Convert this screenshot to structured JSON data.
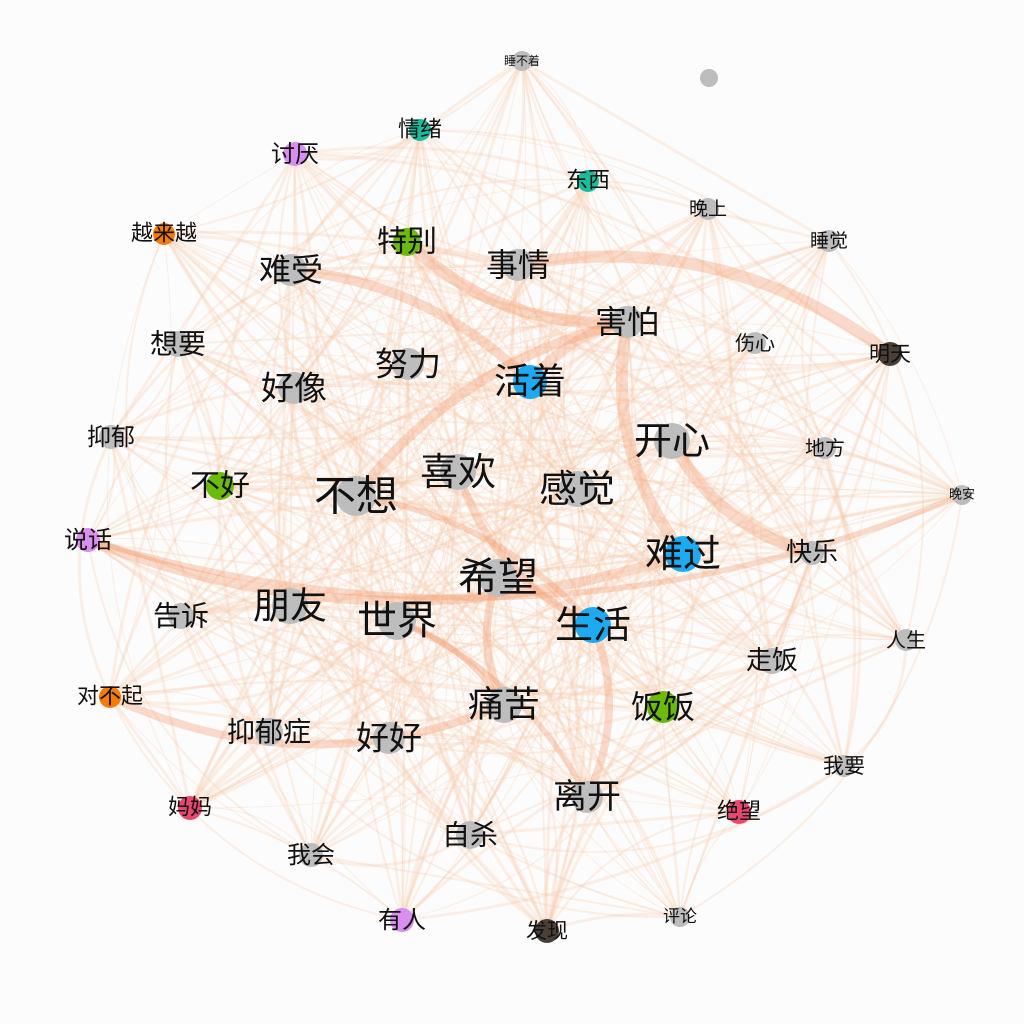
{
  "colors": {
    "background": "#fcfcfc",
    "edge_light": "#f7c9a8",
    "edge_strong": "#f39a6c",
    "gray": "#bdbdbd",
    "teal": "#1abc9c",
    "green": "#6cbb0a",
    "orange": "#f57c00",
    "purple": "#d98ef0",
    "blue": "#1eaaf1",
    "dark": "#4a3f36",
    "pink": "#e8486f"
  },
  "graph": {
    "nodes": [
      {
        "id": "shuibuzhao",
        "label": "睡不着",
        "group": "gray"
      },
      {
        "id": "isolated",
        "label": "",
        "group": "gray"
      },
      {
        "id": "qingxu",
        "label": "情绪",
        "group": "teal"
      },
      {
        "id": "taoyan",
        "label": "讨厌",
        "group": "purple"
      },
      {
        "id": "dongxi",
        "label": "东西",
        "group": "teal"
      },
      {
        "id": "wanshang",
        "label": "晚上",
        "group": "gray"
      },
      {
        "id": "yuelaiyue",
        "label": "越来越",
        "group": "orange"
      },
      {
        "id": "tebie",
        "label": "特别",
        "group": "green"
      },
      {
        "id": "shuijiao",
        "label": "睡觉",
        "group": "gray"
      },
      {
        "id": "shiqing",
        "label": "事情",
        "group": "gray"
      },
      {
        "id": "nanshou",
        "label": "难受",
        "group": "gray"
      },
      {
        "id": "haipa",
        "label": "害怕",
        "group": "gray"
      },
      {
        "id": "xiangyao",
        "label": "想要",
        "group": "gray"
      },
      {
        "id": "shangxin",
        "label": "伤心",
        "group": "gray"
      },
      {
        "id": "mingtian",
        "label": "明天",
        "group": "dark"
      },
      {
        "id": "nuli",
        "label": "努力",
        "group": "gray"
      },
      {
        "id": "huozhe",
        "label": "活着",
        "group": "blue"
      },
      {
        "id": "haoxiang",
        "label": "好像",
        "group": "gray"
      },
      {
        "id": "yiyu",
        "label": "抑郁",
        "group": "gray"
      },
      {
        "id": "kaixin",
        "label": "开心",
        "group": "gray"
      },
      {
        "id": "difang",
        "label": "地方",
        "group": "gray"
      },
      {
        "id": "buhao",
        "label": "不好",
        "group": "green"
      },
      {
        "id": "xihuan",
        "label": "喜欢",
        "group": "gray"
      },
      {
        "id": "buxiang",
        "label": "不想",
        "group": "gray"
      },
      {
        "id": "ganjue",
        "label": "感觉",
        "group": "gray"
      },
      {
        "id": "wanan",
        "label": "晚安",
        "group": "gray"
      },
      {
        "id": "shuohua",
        "label": "说话",
        "group": "purple"
      },
      {
        "id": "nanguo",
        "label": "难过",
        "group": "blue"
      },
      {
        "id": "kuaile",
        "label": "快乐",
        "group": "gray"
      },
      {
        "id": "xiwang",
        "label": "希望",
        "group": "gray"
      },
      {
        "id": "pengyou",
        "label": "朋友",
        "group": "gray"
      },
      {
        "id": "gaosu",
        "label": "告诉",
        "group": "gray"
      },
      {
        "id": "shijie",
        "label": "世界",
        "group": "gray"
      },
      {
        "id": "shenghuo",
        "label": "生活",
        "group": "blue"
      },
      {
        "id": "rensheng",
        "label": "人生",
        "group": "gray"
      },
      {
        "id": "zoufan",
        "label": "走饭",
        "group": "gray"
      },
      {
        "id": "duibuqi",
        "label": "对不起",
        "group": "orange"
      },
      {
        "id": "tongku",
        "label": "痛苦",
        "group": "gray"
      },
      {
        "id": "fanfan",
        "label": "饭饭",
        "group": "green"
      },
      {
        "id": "yiyuzheng",
        "label": "抑郁症",
        "group": "gray"
      },
      {
        "id": "haohao",
        "label": "好好",
        "group": "gray"
      },
      {
        "id": "woyao",
        "label": "我要",
        "group": "gray"
      },
      {
        "id": "likai",
        "label": "离开",
        "group": "gray"
      },
      {
        "id": "mama",
        "label": "妈妈",
        "group": "pink"
      },
      {
        "id": "juewang",
        "label": "绝望",
        "group": "pink"
      },
      {
        "id": "zisha",
        "label": "自杀",
        "group": "gray"
      },
      {
        "id": "wohui",
        "label": "我会",
        "group": "gray"
      },
      {
        "id": "pinglun",
        "label": "评论",
        "group": "gray"
      },
      {
        "id": "youren",
        "label": "有人",
        "group": "purple"
      },
      {
        "id": "faxian",
        "label": "发现",
        "group": "dark"
      }
    ]
  }
}
